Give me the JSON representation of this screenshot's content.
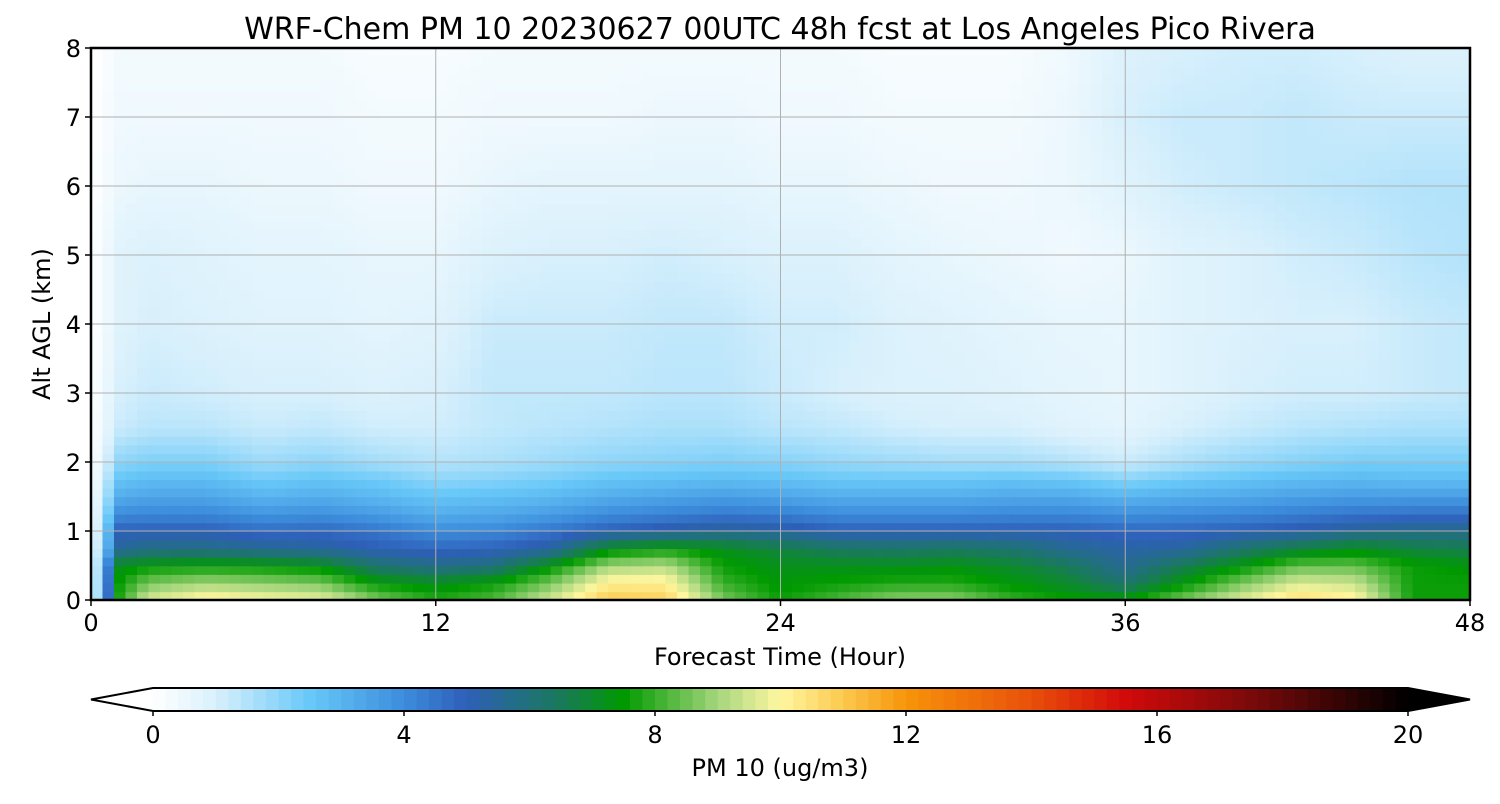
{
  "chart_data": {
    "type": "heatmap",
    "title": "WRF-Chem PM 10  20230627 00UTC 48h fcst at Los Angeles Pico Rivera",
    "xlabel": "Forecast Time (Hour)",
    "ylabel": "Alt AGL (km)",
    "xlim": [
      0,
      48
    ],
    "ylim": [
      0,
      8
    ],
    "xticks": [
      0,
      12,
      24,
      36,
      48
    ],
    "yticks": [
      0,
      1,
      2,
      3,
      4,
      5,
      6,
      7,
      8
    ],
    "grid": true,
    "colorbar": {
      "label": "PM 10  (ug/m3)",
      "range": [
        0,
        20
      ],
      "ticks": [
        0,
        4,
        8,
        12,
        16,
        20
      ],
      "extend": "both",
      "colors": [
        {
          "v": 0,
          "c": "#ffffff"
        },
        {
          "v": 1,
          "c": "#d8f0fc"
        },
        {
          "v": 2.5,
          "c": "#68c8f8"
        },
        {
          "v": 4,
          "c": "#3c8cdc"
        },
        {
          "v": 5,
          "c": "#2e5fb8"
        },
        {
          "v": 6.5,
          "c": "#197a5a"
        },
        {
          "v": 7.5,
          "c": "#009a00"
        },
        {
          "v": 9,
          "c": "#a5d67d"
        },
        {
          "v": 10,
          "c": "#fff7a0"
        },
        {
          "v": 11,
          "c": "#fbc94e"
        },
        {
          "v": 12,
          "c": "#f7940a"
        },
        {
          "v": 14,
          "c": "#e8500a"
        },
        {
          "v": 15.5,
          "c": "#d20a0a"
        },
        {
          "v": 17.5,
          "c": "#7a0a0a"
        },
        {
          "v": 20,
          "c": "#000000"
        }
      ]
    },
    "forecast_hours": [
      0,
      1,
      2,
      4,
      6,
      8,
      10,
      12,
      14,
      16,
      18,
      20,
      22,
      24,
      26,
      28,
      30,
      32,
      34,
      36,
      38,
      40,
      42,
      44,
      46,
      48
    ],
    "altitudes_km": [
      0,
      0.25,
      0.5,
      0.75,
      1,
      1.25,
      1.5,
      1.75,
      2,
      2.5,
      3,
      4,
      5,
      6,
      7,
      8
    ],
    "pm10_by_hour": [
      [
        0,
        0,
        0,
        0,
        0,
        0,
        0,
        0,
        0,
        0,
        0,
        0,
        0,
        0,
        0,
        0
      ],
      [
        7.8,
        7.6,
        7.2,
        5.5,
        5.0,
        4.0,
        3.2,
        2.6,
        2.0,
        1.2,
        1.0,
        0.8,
        0.8,
        0.5,
        0.4,
        0.3
      ],
      [
        9.6,
        8.6,
        7.5,
        5.8,
        5.0,
        4.1,
        3.4,
        2.8,
        2.2,
        1.4,
        1.2,
        1.0,
        0.9,
        0.6,
        0.4,
        0.3
      ],
      [
        10.2,
        9.0,
        7.6,
        5.8,
        5.0,
        4.1,
        3.4,
        2.8,
        2.2,
        1.4,
        1.1,
        0.9,
        0.8,
        0.6,
        0.4,
        0.3
      ],
      [
        10.0,
        8.8,
        7.5,
        5.6,
        4.7,
        3.8,
        3.0,
        2.4,
        1.8,
        1.2,
        1.0,
        0.8,
        0.7,
        0.5,
        0.4,
        0.3
      ],
      [
        9.8,
        8.6,
        7.3,
        5.4,
        4.8,
        3.9,
        3.2,
        2.6,
        2.0,
        1.3,
        1.0,
        0.8,
        0.7,
        0.5,
        0.4,
        0.3
      ],
      [
        8.6,
        7.5,
        6.2,
        5.0,
        4.5,
        3.6,
        2.9,
        2.4,
        1.7,
        1.1,
        0.9,
        0.7,
        0.6,
        0.4,
        0.3,
        0.2
      ],
      [
        7.8,
        7.2,
        5.8,
        4.8,
        4.0,
        3.2,
        2.6,
        2.0,
        1.5,
        1.1,
        1.0,
        0.8,
        0.6,
        0.4,
        0.3,
        0.2
      ],
      [
        8.2,
        7.6,
        6.0,
        4.9,
        4.1,
        3.3,
        2.7,
        2.1,
        1.6,
        1.3,
        1.3,
        1.2,
        0.9,
        0.6,
        0.4,
        0.3
      ],
      [
        9.5,
        8.6,
        7.4,
        5.4,
        4.5,
        3.6,
        2.9,
        2.3,
        1.8,
        1.4,
        1.3,
        1.2,
        1.0,
        0.7,
        0.4,
        0.3
      ],
      [
        11.0,
        10.2,
        9.0,
        7.2,
        5.0,
        4.0,
        3.2,
        2.6,
        2.0,
        1.5,
        1.3,
        1.2,
        1.0,
        0.7,
        0.4,
        0.3
      ],
      [
        10.8,
        10.2,
        9.2,
        7.6,
        5.3,
        4.2,
        3.4,
        2.7,
        2.1,
        1.6,
        1.4,
        1.3,
        1.1,
        0.7,
        0.5,
        0.3
      ],
      [
        8.6,
        8.0,
        7.6,
        7.2,
        5.6,
        4.4,
        3.6,
        2.8,
        2.2,
        1.6,
        1.4,
        1.3,
        1.0,
        0.7,
        0.5,
        0.3
      ],
      [
        7.6,
        7.4,
        7.2,
        6.8,
        5.4,
        4.3,
        3.4,
        2.7,
        2.1,
        1.4,
        1.2,
        1.1,
        0.9,
        0.6,
        0.4,
        0.3
      ],
      [
        8.2,
        7.6,
        7.2,
        6.4,
        5.0,
        4.0,
        3.2,
        2.5,
        1.9,
        1.3,
        1.0,
        1.1,
        0.9,
        0.6,
        0.4,
        0.3
      ],
      [
        8.8,
        7.8,
        7.2,
        6.3,
        5.0,
        4.0,
        3.2,
        2.5,
        1.8,
        1.1,
        0.9,
        0.9,
        0.7,
        0.5,
        0.3,
        0.2
      ],
      [
        8.8,
        7.8,
        7.3,
        6.4,
        5.0,
        4.0,
        3.2,
        2.5,
        1.7,
        1.0,
        0.9,
        0.8,
        0.6,
        0.4,
        0.3,
        0.2
      ],
      [
        8.0,
        7.4,
        7.0,
        6.2,
        5.0,
        4.1,
        3.3,
        2.6,
        1.7,
        1.0,
        0.8,
        0.7,
        0.5,
        0.4,
        0.3,
        0.2
      ],
      [
        7.6,
        7.0,
        6.5,
        5.6,
        5.0,
        4.1,
        3.3,
        2.5,
        1.5,
        0.8,
        0.7,
        0.6,
        0.4,
        0.5,
        0.5,
        0.4
      ],
      [
        7.5,
        6.2,
        5.6,
        5.3,
        4.8,
        3.9,
        3.0,
        2.1,
        1.2,
        0.7,
        0.6,
        0.6,
        0.5,
        0.8,
        1.0,
        0.9
      ],
      [
        8.6,
        7.4,
        6.6,
        5.4,
        4.8,
        4.0,
        3.2,
        2.4,
        1.6,
        1.0,
        0.8,
        0.8,
        0.8,
        1.1,
        1.2,
        1.0
      ],
      [
        9.6,
        8.6,
        7.4,
        6.2,
        5.0,
        4.1,
        3.3,
        2.6,
        1.9,
        1.2,
        1.0,
        0.9,
        0.9,
        1.2,
        1.2,
        1.1
      ],
      [
        10.6,
        9.6,
        8.4,
        6.8,
        5.2,
        4.3,
        3.5,
        2.8,
        2.1,
        1.4,
        1.1,
        1.0,
        1.1,
        1.3,
        1.3,
        1.1
      ],
      [
        10.2,
        9.4,
        8.4,
        7.2,
        5.6,
        4.5,
        3.6,
        2.9,
        2.3,
        1.5,
        1.1,
        1.0,
        1.2,
        1.4,
        1.2,
        1.0
      ],
      [
        7.6,
        7.6,
        7.6,
        6.8,
        5.8,
        4.6,
        3.6,
        2.8,
        2.3,
        1.6,
        1.2,
        1.2,
        1.4,
        1.5,
        1.2,
        0.9
      ],
      [
        7.6,
        7.6,
        7.4,
        6.6,
        5.8,
        4.6,
        3.6,
        2.8,
        2.3,
        1.6,
        1.3,
        1.3,
        1.5,
        1.5,
        1.2,
        0.9
      ]
    ]
  }
}
